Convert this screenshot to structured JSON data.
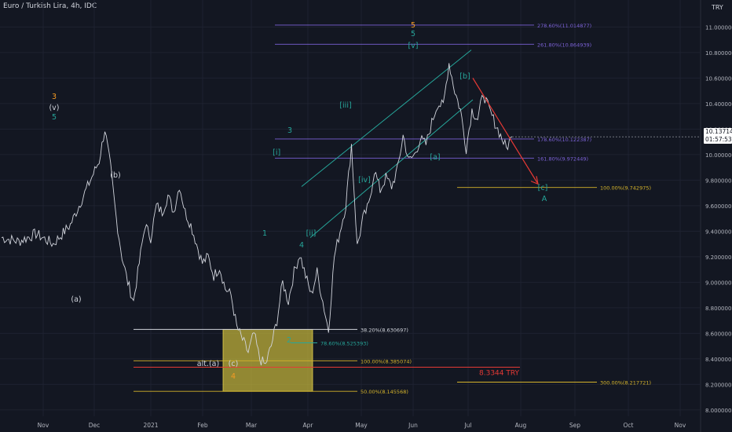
{
  "chart_data": {
    "type": "line",
    "title": "Euro / Turkish Lira, 4h, IDC",
    "currency": "TRY",
    "current_price": "10.137140",
    "countdown": "01:57:53",
    "colors": {
      "background": "#131722",
      "grid": "#1e2230",
      "price": "#d1d4dc",
      "teal": "#26a69a",
      "orange": "#f59b23",
      "purple": "#7b61d6",
      "gold": "#d4b32b",
      "red": "#e53935",
      "zone": "#c9b93a"
    },
    "x_ticks": [
      "Nov",
      "Dec",
      "2021",
      "Feb",
      "Mar",
      "Apr",
      "May",
      "Jun",
      "Jul",
      "Aug",
      "Sep",
      "Oct",
      "Nov"
    ],
    "y_ticks": [
      "11.000000",
      "10.800000",
      "10.600000",
      "10.400000",
      "10.200000",
      "10.000000",
      "9.800000",
      "9.600000",
      "9.400000",
      "9.200000",
      "9.000000",
      "8.800000",
      "8.600000",
      "8.400000",
      "8.200000",
      "8.000000"
    ],
    "ylim": [
      7.95,
      11.15
    ],
    "series": [
      {
        "values": [
          [
            0,
            9.35
          ],
          [
            3,
            9.32
          ],
          [
            6,
            9.38
          ],
          [
            9,
            9.3
          ],
          [
            12,
            9.45
          ],
          [
            15,
            9.75
          ],
          [
            17,
            9.95
          ],
          [
            18,
            10.2
          ],
          [
            19,
            9.9
          ],
          [
            20,
            9.5
          ],
          [
            21,
            9.2
          ],
          [
            22,
            9.0
          ],
          [
            23,
            8.85
          ],
          [
            24,
            9.15
          ],
          [
            25,
            9.45
          ],
          [
            26,
            9.35
          ],
          [
            27,
            9.6
          ],
          [
            28,
            9.55
          ],
          [
            29,
            9.68
          ],
          [
            30,
            9.55
          ],
          [
            31,
            9.76
          ],
          [
            32,
            9.55
          ],
          [
            33,
            9.45
          ],
          [
            34,
            9.3
          ],
          [
            35,
            9.15
          ],
          [
            36,
            9.2
          ],
          [
            37,
            9.05
          ],
          [
            38,
            9.12
          ],
          [
            39,
            8.95
          ],
          [
            40,
            8.9
          ],
          [
            41,
            8.65
          ],
          [
            42,
            8.55
          ],
          [
            43,
            8.45
          ],
          [
            44,
            8.6
          ],
          [
            45,
            8.4
          ],
          [
            46,
            8.35
          ],
          [
            47,
            8.5
          ],
          [
            48,
            8.7
          ],
          [
            49,
            9.0
          ],
          [
            50,
            8.85
          ],
          [
            51,
            9.08
          ],
          [
            52,
            9.22
          ],
          [
            53,
            9.05
          ],
          [
            54,
            8.9
          ],
          [
            55,
            9.08
          ],
          [
            56,
            8.85
          ],
          [
            57,
            8.62
          ],
          [
            58,
            9.2
          ],
          [
            59,
            9.4
          ],
          [
            60,
            9.6
          ],
          [
            61,
            10.08
          ],
          [
            62,
            9.28
          ],
          [
            63,
            9.5
          ],
          [
            64,
            9.6
          ],
          [
            65,
            9.88
          ],
          [
            66,
            9.72
          ],
          [
            67,
            9.82
          ],
          [
            68,
            9.75
          ],
          [
            69,
            9.88
          ],
          [
            70,
            10.15
          ],
          [
            71,
            9.95
          ],
          [
            72,
            10.0
          ],
          [
            73,
            10.12
          ],
          [
            74,
            10.08
          ],
          [
            75,
            10.25
          ],
          [
            76,
            10.4
          ],
          [
            77,
            10.38
          ],
          [
            78,
            10.72
          ],
          [
            79,
            10.5
          ],
          [
            80,
            10.35
          ],
          [
            81,
            10.05
          ],
          [
            82,
            10.35
          ],
          [
            83,
            10.28
          ],
          [
            84,
            10.48
          ],
          [
            85,
            10.35
          ],
          [
            86,
            10.25
          ],
          [
            87,
            10.15
          ],
          [
            88,
            10.05
          ],
          [
            89,
            10.14
          ]
        ]
      }
    ],
    "wave_labels": [
      {
        "text": "3",
        "series": "orange",
        "x": 17,
        "y": 10.4
      },
      {
        "text": "(v)",
        "series": "white",
        "x": 17,
        "y": 10.32
      },
      {
        "text": "5",
        "series": "teal",
        "x": 17,
        "y": 10.25
      },
      {
        "text": "(a)",
        "series": "white",
        "x": 23,
        "y": 8.8
      },
      {
        "text": "(b)",
        "series": "white",
        "x": 31,
        "y": 9.8
      },
      {
        "text": "alt.(a)",
        "series": "white",
        "x": 42,
        "y": 8.33
      },
      {
        "text": "(c)",
        "series": "white",
        "x": 46,
        "y": 8.33
      },
      {
        "text": "4",
        "series": "orange",
        "x": 46,
        "y": 8.2
      },
      {
        "text": "1",
        "series": "teal",
        "x": 58,
        "y": 9.35
      },
      {
        "text": "2",
        "series": "teal",
        "x": 57,
        "y": 8.55
      },
      {
        "text": "3",
        "series": "teal",
        "x": 61,
        "y": 10.15
      },
      {
        "text": "4",
        "series": "teal",
        "x": 62,
        "y": 9.25
      },
      {
        "text": "[i]",
        "series": "teal",
        "x": 63,
        "y": 10.0
      },
      {
        "text": "[ii]",
        "series": "teal",
        "x": 64,
        "y": 9.33
      },
      {
        "text": "[iii]",
        "series": "teal",
        "x": 70,
        "y": 10.32
      },
      {
        "text": "[iv]",
        "series": "teal",
        "x": 73,
        "y": 9.82
      },
      {
        "text": "5",
        "series": "orange",
        "x": 78,
        "y": 10.98
      },
      {
        "text": "5",
        "series": "teal",
        "x": 78,
        "y": 10.9
      },
      {
        "text": "[v]",
        "series": "teal",
        "x": 78,
        "y": 10.8
      },
      {
        "text": "[a]",
        "series": "teal",
        "x": 81,
        "y": 9.97
      },
      {
        "text": "[b]",
        "series": "teal",
        "x": 87,
        "y": 10.6
      },
      {
        "text": "[c]",
        "series": "teal",
        "x": 101,
        "y": 9.7
      },
      {
        "text": "A",
        "series": "teal",
        "x": 101,
        "y": 9.58
      }
    ],
    "levels": [
      {
        "label": "278.60%(11.014877)",
        "value": 11.014877,
        "color": "purple",
        "x0": 58,
        "x1": 130
      },
      {
        "label": "261.80%(10.864939)",
        "value": 10.864939,
        "color": "purple",
        "x0": 58,
        "x1": 130
      },
      {
        "label": "178.60%(10.122387)",
        "value": 10.122387,
        "color": "purple",
        "x0": 58,
        "x1": 130
      },
      {
        "label": "161.80%(9.972449)",
        "value": 9.972449,
        "color": "purple",
        "x0": 58,
        "x1": 130
      },
      {
        "label": "100.00%(9.742975)",
        "value": 9.742975,
        "color": "gold",
        "x0": 86,
        "x1": 150
      },
      {
        "label": "38.20%(8.630697)",
        "value": 8.630697,
        "color": "white",
        "x0": 30,
        "x1": 90
      },
      {
        "label": "78.60%(8.525393)",
        "value": 8.525393,
        "color": "teal",
        "x0": 58,
        "x1": 70
      },
      {
        "label": "100.00%(8.385074)",
        "value": 8.385074,
        "color": "gold",
        "x0": 30,
        "x1": 90
      },
      {
        "label": "50.00%(8.145568)",
        "value": 8.145568,
        "color": "gold",
        "x0": 30,
        "x1": 90
      },
      {
        "label": "300.00%(8.217721)",
        "value": 8.217721,
        "color": "gold",
        "x0": 86,
        "x1": 150
      }
    ],
    "price_line": {
      "label": "8.3344 TRY",
      "value": 8.3344
    },
    "annotations": [
      "[v]",
      "[c]",
      "A"
    ]
  }
}
